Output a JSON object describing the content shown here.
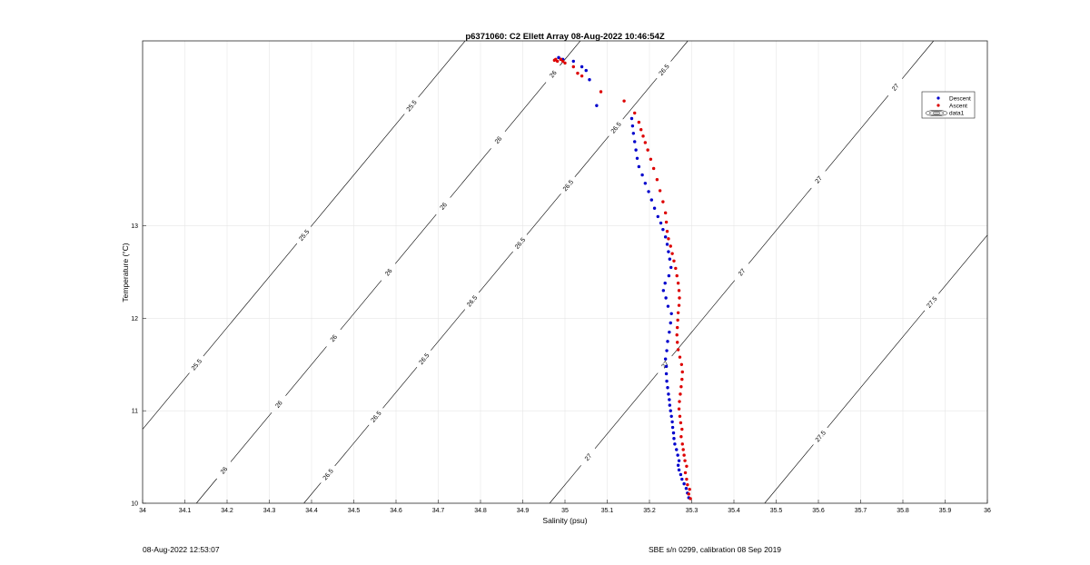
{
  "chart_data": {
    "type": "scatter",
    "title": "p6371060: C2 Ellett Array 08-Aug-2022 10:46:54Z",
    "xlabel": "Salinity (psu)",
    "ylabel": "Temperature (°C)",
    "xlim": [
      34,
      36
    ],
    "ylim": [
      10,
      15
    ],
    "x_ticks": [
      "34",
      "34.1",
      "34.2",
      "34.3",
      "34.4",
      "34.5",
      "34.6",
      "34.7",
      "34.8",
      "34.9",
      "35",
      "35.1",
      "35.2",
      "35.3",
      "35.4",
      "35.5",
      "35.6",
      "35.7",
      "35.8",
      "35.9",
      "36"
    ],
    "y_ticks": [
      "10",
      "11",
      "12",
      "13"
    ],
    "grid": true,
    "legend": {
      "placement": "top-right",
      "entries": [
        "Descent",
        "Ascent",
        "data1"
      ]
    },
    "colors": {
      "descent": "#0000cc",
      "ascent": "#dd0000",
      "contour": "#000000",
      "grid": "#e6e6e6"
    },
    "series": [
      {
        "name": "Descent",
        "x": [
          35.293,
          35.29,
          35.287,
          35.282,
          35.277,
          35.274,
          35.27,
          35.268,
          35.27,
          35.267,
          35.264,
          35.26,
          35.258,
          35.257,
          35.255,
          35.254,
          35.252,
          35.25,
          35.248,
          35.247,
          35.245,
          35.243,
          35.241,
          35.24,
          35.24,
          35.238,
          35.241,
          35.243,
          35.247,
          35.25,
          35.252,
          35.244,
          35.239,
          35.233,
          35.237,
          35.246,
          35.251,
          35.248,
          35.245,
          35.242,
          35.238,
          35.232,
          35.227,
          35.22,
          35.212,
          35.205,
          35.198,
          35.19,
          35.183,
          35.175,
          35.171,
          35.168,
          35.165,
          35.162,
          35.16,
          35.158,
          35.075,
          35.058,
          35.05,
          35.04,
          35.02,
          34.995,
          34.99,
          34.985
        ],
        "y": [
          10.06,
          10.11,
          10.16,
          10.21,
          10.26,
          10.31,
          10.36,
          10.41,
          10.46,
          10.52,
          10.58,
          10.64,
          10.7,
          10.76,
          10.82,
          10.88,
          10.94,
          11.0,
          11.06,
          11.12,
          11.18,
          11.25,
          11.32,
          11.4,
          11.48,
          11.56,
          11.65,
          11.75,
          11.85,
          11.95,
          12.05,
          12.13,
          12.22,
          12.3,
          12.38,
          12.46,
          12.55,
          12.64,
          12.72,
          12.8,
          12.88,
          12.96,
          13.03,
          13.1,
          13.19,
          13.28,
          13.37,
          13.46,
          13.55,
          13.64,
          13.73,
          13.82,
          13.91,
          14.0,
          14.08,
          14.16,
          14.3,
          14.58,
          14.68,
          14.72,
          14.78,
          14.8,
          14.8,
          14.82
        ]
      },
      {
        "name": "Ascent",
        "x": [
          35.297,
          35.293,
          35.295,
          35.29,
          35.288,
          35.285,
          35.288,
          35.284,
          35.282,
          35.28,
          35.278,
          35.275,
          35.277,
          35.274,
          35.272,
          35.27,
          35.271,
          35.273,
          35.275,
          35.277,
          35.278,
          35.276,
          35.272,
          35.268,
          35.266,
          35.265,
          35.266,
          35.267,
          35.268,
          35.27,
          35.271,
          35.27,
          35.268,
          35.265,
          35.262,
          35.258,
          35.254,
          35.25,
          35.245,
          35.242,
          35.24,
          35.238,
          35.232,
          35.225,
          35.218,
          35.21,
          35.203,
          35.196,
          35.19,
          35.185,
          35.18,
          35.175,
          35.165,
          35.14,
          35.085,
          35.04,
          35.03,
          35.02,
          35.0,
          34.995,
          34.99,
          34.982,
          34.978,
          34.975
        ],
        "y": [
          10.05,
          10.1,
          10.15,
          10.2,
          10.26,
          10.33,
          10.4,
          10.46,
          10.52,
          10.58,
          10.64,
          10.72,
          10.8,
          10.87,
          10.94,
          11.02,
          11.1,
          11.18,
          11.26,
          11.34,
          11.42,
          11.5,
          11.58,
          11.66,
          11.74,
          11.82,
          11.9,
          11.98,
          12.06,
          12.14,
          12.22,
          12.3,
          12.38,
          12.46,
          12.54,
          12.62,
          12.7,
          12.78,
          12.86,
          12.94,
          13.04,
          13.14,
          13.26,
          13.38,
          13.5,
          13.62,
          13.72,
          13.82,
          13.9,
          13.97,
          14.04,
          14.12,
          14.22,
          14.35,
          14.45,
          14.62,
          14.65,
          14.72,
          14.76,
          14.78,
          14.8,
          14.78,
          14.8,
          14.79
        ]
      }
    ],
    "contours": [
      {
        "label": "25.5",
        "labels": [
          "25.5",
          "25.5",
          "25.5"
        ]
      },
      {
        "label": "26",
        "labels": [
          "26",
          "26",
          "26",
          "26",
          "26",
          "26",
          "26"
        ]
      },
      {
        "label": "26.5",
        "labels": [
          "26.5",
          "26.5",
          "26.5",
          "26.5",
          "26.5",
          "26.5",
          "26.5",
          "26.5"
        ]
      },
      {
        "label": "27",
        "labels": [
          "27",
          "27",
          "27",
          "27",
          "27"
        ]
      },
      {
        "label": "27.5",
        "labels": [
          "27.5",
          "27.5"
        ]
      }
    ]
  },
  "footer": {
    "left": "08-Aug-2022 12:53:07",
    "right": "SBE s/n 0299, calibration 08 Sep 2019"
  }
}
